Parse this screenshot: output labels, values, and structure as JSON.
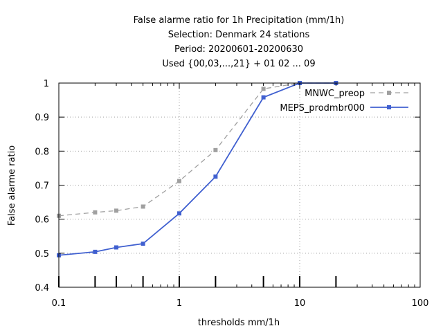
{
  "chart_data": {
    "type": "line",
    "title_lines": [
      "False alarme ratio  for 1h Precipitation (mm/1h)",
      "Selection: Denmark     24 stations",
      "Period: 20200601-20200630",
      "Used {00,03,...,21} + 01 02 ... 09"
    ],
    "xlabel": "thresholds mm/1h",
    "ylabel": "False alarme ratio",
    "x_scale": "log",
    "xlim": [
      0.1,
      100
    ],
    "ylim": [
      0.4,
      1.0
    ],
    "x_ticks": [
      0.1,
      1,
      10,
      100
    ],
    "x_tick_labels": [
      "0.1",
      "1",
      "10",
      "100"
    ],
    "y_ticks": [
      0.4,
      0.5,
      0.6,
      0.7,
      0.8,
      0.9,
      1.0
    ],
    "y_tick_labels": [
      "0.4",
      "0.5",
      "0.6",
      "0.7",
      "0.8",
      "0.9",
      "1"
    ],
    "grid": true,
    "legend_position": "top-right",
    "threshold_markers": [
      0.1,
      0.2,
      0.3,
      0.5,
      1,
      2,
      5,
      10,
      20
    ],
    "series": [
      {
        "name": "MNWC_preop",
        "color": "#a0a0a0",
        "dashed": true,
        "x": [
          0.1,
          0.2,
          0.3,
          0.5,
          1,
          2,
          5,
          10,
          20
        ],
        "values": [
          0.61,
          0.62,
          0.625,
          0.637,
          0.712,
          0.803,
          0.983,
          1.0,
          1.0
        ]
      },
      {
        "name": "MEPS_prodmbr000",
        "color": "#4060d0",
        "dashed": false,
        "x": [
          0.1,
          0.2,
          0.3,
          0.5,
          1,
          2,
          5,
          10,
          20
        ],
        "values": [
          0.494,
          0.504,
          0.517,
          0.528,
          0.617,
          0.725,
          0.958,
          1.0,
          1.0
        ]
      }
    ]
  }
}
